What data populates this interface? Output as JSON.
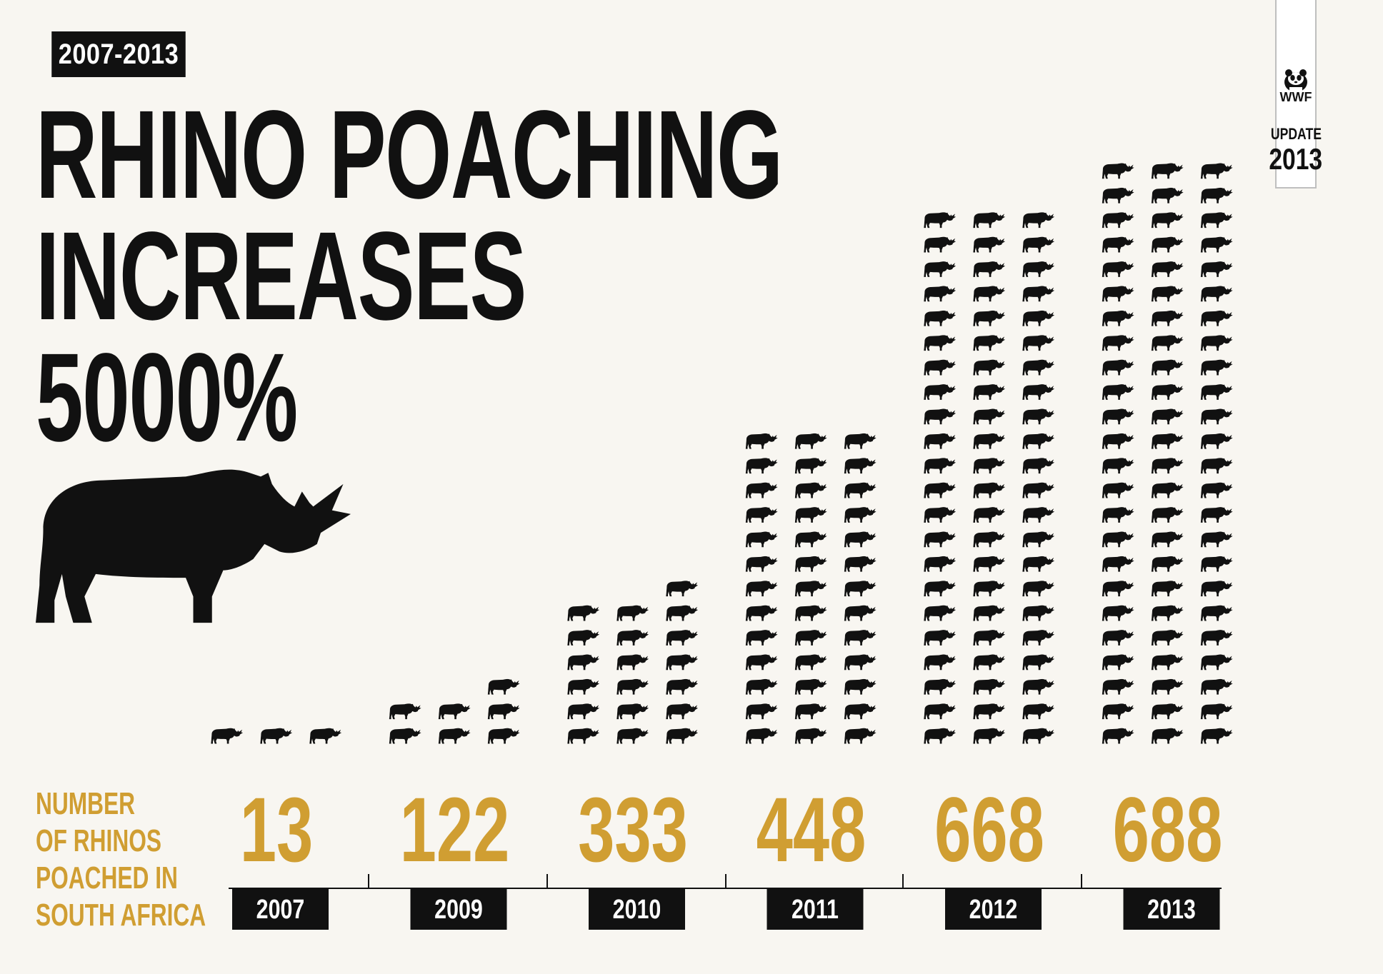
{
  "badge": {
    "range": "2007-2013"
  },
  "headline": {
    "line1": "RHINO POACHING",
    "line2": "INCREASES",
    "line3": "5000%"
  },
  "wwf": {
    "logo_text": "WWF",
    "update_label": "UPDATE",
    "year": "2013"
  },
  "side_label": {
    "line1": "NUMBER",
    "line2": "OF RHINOS",
    "line3": "POACHED IN",
    "line4": "SOUTH AFRICA"
  },
  "icons": {
    "rhino": "rhino-icon",
    "panda": "panda-logo-icon"
  },
  "colors": {
    "background": "#f8f6f1",
    "ink": "#111111",
    "accent": "#d09e32"
  },
  "chart_data": {
    "type": "bar",
    "title": "RHINO POACHING INCREASES 5000%",
    "categories": [
      "2007",
      "2009",
      "2010",
      "2011",
      "2012",
      "2013"
    ],
    "values": [
      13,
      122,
      333,
      448,
      668,
      688
    ],
    "icon_counts": [
      3,
      7,
      19,
      39,
      66,
      72
    ],
    "ylabel": "NUMBER OF RHINOS POACHED IN SOUTH AFRICA"
  }
}
